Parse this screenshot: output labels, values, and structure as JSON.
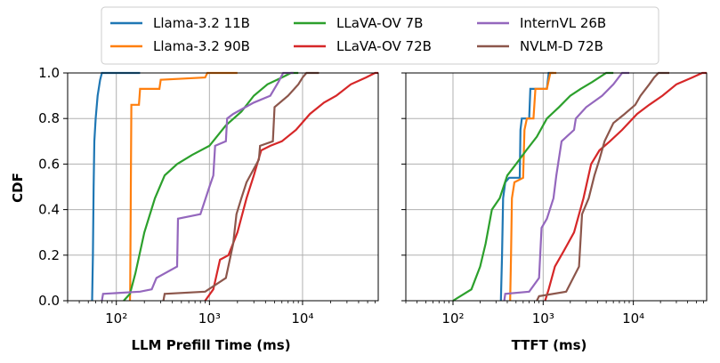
{
  "chart_data": {
    "type": "line",
    "ylabel": "CDF",
    "legend": {
      "placement": "top-center",
      "columns": 3,
      "entries": [
        {
          "name": "Llama-3.2 11B",
          "color": "#1f77b4"
        },
        {
          "name": "Llama-3.2 90B",
          "color": "#ff7f0e"
        },
        {
          "name": "LLaVA-OV 7B",
          "color": "#2ca02c"
        },
        {
          "name": "LLaVA-OV 72B",
          "color": "#d62728"
        },
        {
          "name": "InternVL 26B",
          "color": "#9467bd"
        },
        {
          "name": "NVLM-D 72B",
          "color": "#8c564b"
        }
      ]
    },
    "y_ticks": [
      "0.0",
      "0.2",
      "0.4",
      "0.6",
      "0.8",
      "1.0"
    ],
    "ylim": [
      0,
      1
    ],
    "grid": true,
    "subplots": [
      {
        "id": "prefill",
        "xlabel": "LLM Prefill Time (ms)",
        "xscale": "log",
        "xlim": [
          30,
          65000
        ],
        "x_ticks": [
          {
            "value": 100,
            "label": "10²"
          },
          {
            "value": 1000,
            "label": "10³"
          },
          {
            "value": 10000,
            "label": "10⁴"
          }
        ],
        "series": [
          {
            "name": "Llama-3.2 11B",
            "color": "#1f77b4",
            "points": [
              [
                55,
                0
              ],
              [
                56,
                0.2
              ],
              [
                57,
                0.5
              ],
              [
                58,
                0.7
              ],
              [
                60,
                0.8
              ],
              [
                63,
                0.9
              ],
              [
                67,
                0.97
              ],
              [
                70,
                1.0
              ],
              [
                180,
                1.0
              ]
            ]
          },
          {
            "name": "Llama-3.2 90B",
            "color": "#ff7f0e",
            "points": [
              [
                140,
                0
              ],
              [
                141,
                0.05
              ],
              [
                143,
                0.5
              ],
              [
                145,
                0.86
              ],
              [
                175,
                0.86
              ],
              [
                180,
                0.93
              ],
              [
                290,
                0.93
              ],
              [
                300,
                0.97
              ],
              [
                900,
                0.98
              ],
              [
                950,
                1.0
              ],
              [
                2000,
                1.0
              ]
            ]
          },
          {
            "name": "LLaVA-OV 7B",
            "color": "#2ca02c",
            "points": [
              [
                120,
                0
              ],
              [
                140,
                0.03
              ],
              [
                160,
                0.12
              ],
              [
                200,
                0.3
              ],
              [
                260,
                0.45
              ],
              [
                330,
                0.55
              ],
              [
                450,
                0.6
              ],
              [
                650,
                0.64
              ],
              [
                1000,
                0.68
              ],
              [
                1500,
                0.77
              ],
              [
                2200,
                0.83
              ],
              [
                3000,
                0.9
              ],
              [
                4200,
                0.95
              ],
              [
                6000,
                0.98
              ],
              [
                7500,
                1.0
              ],
              [
                9000,
                1.0
              ]
            ]
          },
          {
            "name": "LLaVA-OV 72B",
            "color": "#d62728",
            "points": [
              [
                900,
                0
              ],
              [
                1100,
                0.05
              ],
              [
                1300,
                0.18
              ],
              [
                1600,
                0.2
              ],
              [
                2000,
                0.3
              ],
              [
                2500,
                0.45
              ],
              [
                3000,
                0.55
              ],
              [
                3600,
                0.66
              ],
              [
                4500,
                0.68
              ],
              [
                6000,
                0.7
              ],
              [
                8500,
                0.75
              ],
              [
                12000,
                0.82
              ],
              [
                17000,
                0.87
              ],
              [
                23000,
                0.9
              ],
              [
                33000,
                0.95
              ],
              [
                48000,
                0.98
              ],
              [
                60000,
                1.0
              ],
              [
                65000,
                1.0
              ]
            ]
          },
          {
            "name": "InternVL 26B",
            "color": "#9467bd",
            "points": [
              [
                70,
                0
              ],
              [
                72,
                0.03
              ],
              [
                180,
                0.04
              ],
              [
                240,
                0.05
              ],
              [
                270,
                0.1
              ],
              [
                450,
                0.15
              ],
              [
                460,
                0.36
              ],
              [
                800,
                0.38
              ],
              [
                1000,
                0.5
              ],
              [
                1100,
                0.55
              ],
              [
                1150,
                0.68
              ],
              [
                1500,
                0.7
              ],
              [
                1550,
                0.8
              ],
              [
                1800,
                0.82
              ],
              [
                3000,
                0.87
              ],
              [
                4500,
                0.9
              ],
              [
                5500,
                0.96
              ],
              [
                6200,
                1.0
              ],
              [
                8000,
                1.0
              ]
            ]
          },
          {
            "name": "NVLM-D 72B",
            "color": "#8c564b",
            "points": [
              [
                320,
                0
              ],
              [
                330,
                0.03
              ],
              [
                900,
                0.04
              ],
              [
                1500,
                0.1
              ],
              [
                1800,
                0.25
              ],
              [
                1950,
                0.38
              ],
              [
                2200,
                0.45
              ],
              [
                2500,
                0.52
              ],
              [
                3400,
                0.62
              ],
              [
                3500,
                0.68
              ],
              [
                4800,
                0.7
              ],
              [
                5000,
                0.85
              ],
              [
                7000,
                0.9
              ],
              [
                9000,
                0.95
              ],
              [
                10000,
                0.98
              ],
              [
                11000,
                1.0
              ],
              [
                15000,
                1.0
              ]
            ]
          }
        ]
      },
      {
        "id": "ttft",
        "xlabel": "TTFT (ms)",
        "xscale": "log",
        "xlim": [
          30,
          65000
        ],
        "x_ticks": [
          {
            "value": 100,
            "label": "10²"
          },
          {
            "value": 1000,
            "label": "10³"
          },
          {
            "value": 10000,
            "label": "10⁴"
          }
        ],
        "series": [
          {
            "name": "Llama-3.2 11B",
            "color": "#1f77b4",
            "points": [
              [
                340,
                0
              ],
              [
                350,
                0.2
              ],
              [
                360,
                0.45
              ],
              [
                380,
                0.52
              ],
              [
                420,
                0.54
              ],
              [
                550,
                0.54
              ],
              [
                560,
                0.75
              ],
              [
                580,
                0.8
              ],
              [
                700,
                0.8
              ],
              [
                720,
                0.93
              ],
              [
                1100,
                0.93
              ],
              [
                1150,
                1.0
              ],
              [
                1300,
                1.0
              ]
            ]
          },
          {
            "name": "Llama-3.2 90B",
            "color": "#ff7f0e",
            "points": [
              [
                430,
                0
              ],
              [
                440,
                0.2
              ],
              [
                450,
                0.45
              ],
              [
                480,
                0.52
              ],
              [
                600,
                0.54
              ],
              [
                620,
                0.75
              ],
              [
                660,
                0.8
              ],
              [
                780,
                0.8
              ],
              [
                820,
                0.93
              ],
              [
                1100,
                0.93
              ],
              [
                1200,
                1.0
              ],
              [
                1400,
                1.0
              ]
            ]
          },
          {
            "name": "LLaVA-OV 7B",
            "color": "#2ca02c",
            "points": [
              [
                100,
                0
              ],
              [
                160,
                0.05
              ],
              [
                200,
                0.15
              ],
              [
                230,
                0.25
              ],
              [
                270,
                0.4
              ],
              [
                330,
                0.45
              ],
              [
                400,
                0.55
              ],
              [
                500,
                0.6
              ],
              [
                650,
                0.66
              ],
              [
                850,
                0.72
              ],
              [
                1100,
                0.8
              ],
              [
                1500,
                0.85
              ],
              [
                2000,
                0.9
              ],
              [
                2600,
                0.93
              ],
              [
                3500,
                0.96
              ],
              [
                5000,
                1.0
              ],
              [
                6000,
                1.0
              ]
            ]
          },
          {
            "name": "LLaVA-OV 72B",
            "color": "#d62728",
            "points": [
              [
                1050,
                0
              ],
              [
                1150,
                0.05
              ],
              [
                1350,
                0.15
              ],
              [
                1700,
                0.22
              ],
              [
                2200,
                0.3
              ],
              [
                2800,
                0.45
              ],
              [
                3400,
                0.6
              ],
              [
                4200,
                0.66
              ],
              [
                5500,
                0.7
              ],
              [
                7500,
                0.75
              ],
              [
                11000,
                0.82
              ],
              [
                15000,
                0.86
              ],
              [
                21000,
                0.9
              ],
              [
                30000,
                0.95
              ],
              [
                45000,
                0.98
              ],
              [
                58000,
                1.0
              ],
              [
                65000,
                1.0
              ]
            ]
          },
          {
            "name": "InternVL 26B",
            "color": "#9467bd",
            "points": [
              [
                370,
                0
              ],
              [
                380,
                0.03
              ],
              [
                700,
                0.04
              ],
              [
                900,
                0.1
              ],
              [
                960,
                0.32
              ],
              [
                1100,
                0.36
              ],
              [
                1300,
                0.45
              ],
              [
                1400,
                0.55
              ],
              [
                1600,
                0.7
              ],
              [
                2200,
                0.75
              ],
              [
                2300,
                0.8
              ],
              [
                3000,
                0.85
              ],
              [
                4500,
                0.9
              ],
              [
                6000,
                0.95
              ],
              [
                7500,
                1.0
              ],
              [
                9000,
                1.0
              ]
            ]
          },
          {
            "name": "NVLM-D 72B",
            "color": "#8c564b",
            "points": [
              [
                850,
                0
              ],
              [
                900,
                0.02
              ],
              [
                1800,
                0.04
              ],
              [
                2500,
                0.15
              ],
              [
                2700,
                0.38
              ],
              [
                3200,
                0.45
              ],
              [
                3700,
                0.55
              ],
              [
                4200,
                0.62
              ],
              [
                4800,
                0.7
              ],
              [
                6000,
                0.78
              ],
              [
                8000,
                0.82
              ],
              [
                10500,
                0.86
              ],
              [
                12000,
                0.9
              ],
              [
                15000,
                0.95
              ],
              [
                17000,
                0.98
              ],
              [
                19000,
                1.0
              ],
              [
                25000,
                1.0
              ]
            ]
          }
        ]
      }
    ]
  }
}
